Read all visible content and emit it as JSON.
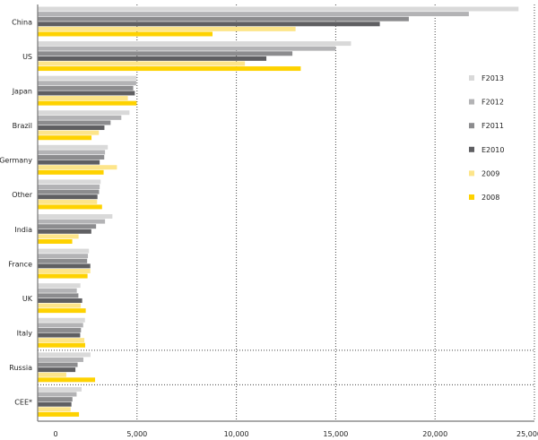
{
  "chart_data": {
    "type": "bar",
    "orientation": "horizontal",
    "title": "",
    "xlabel": "",
    "ylabel": "",
    "xlim": [
      0,
      25000
    ],
    "x_ticks": [
      "0",
      "5,000",
      "10,000",
      "15,000",
      "20,000",
      "25,000"
    ],
    "grid": "vertical dotted",
    "legend_position": "right",
    "categories": [
      "China",
      "US",
      "Japan",
      "Brazil",
      "Germany",
      "Other",
      "India",
      "France",
      "UK",
      "Italy",
      "Russia",
      "CEE*"
    ],
    "series": [
      {
        "name": "F2013",
        "color": "#d9d9d9",
        "values": [
          24200,
          15770,
          4980,
          4620,
          3530,
          3170,
          3760,
          2580,
          2150,
          2380,
          2660,
          2210
        ]
      },
      {
        "name": "F2012",
        "color": "#b3b3b5",
        "values": [
          21700,
          15000,
          4960,
          4210,
          3390,
          3120,
          3390,
          2530,
          1970,
          2290,
          2300,
          1960
        ]
      },
      {
        "name": "F2011",
        "color": "#8c8c8e",
        "values": [
          18680,
          12820,
          4810,
          3670,
          3350,
          3090,
          2940,
          2490,
          2050,
          2180,
          2010,
          1750
        ]
      },
      {
        "name": "E2010",
        "color": "#5f5f62",
        "values": [
          17220,
          11510,
          4890,
          3360,
          3120,
          3010,
          2700,
          2650,
          2240,
          2140,
          1900,
          1700
        ]
      },
      {
        "name": "2009",
        "color": "#fde58a",
        "values": [
          12980,
          10430,
          4540,
          3080,
          3990,
          2990,
          2060,
          2650,
          2170,
          2350,
          1440,
          1660
        ]
      },
      {
        "name": "2008",
        "color": "#fed200",
        "values": [
          8800,
          13240,
          4980,
          2710,
          3320,
          3240,
          1740,
          2510,
          2420,
          2390,
          2890,
          2080
        ]
      }
    ]
  }
}
